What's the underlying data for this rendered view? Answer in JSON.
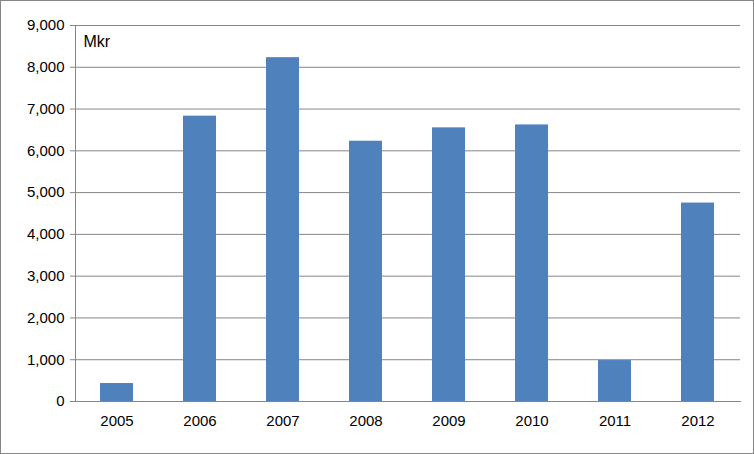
{
  "chart_data": {
    "type": "bar",
    "y_label": "Mkr",
    "categories": [
      "2005",
      "2006",
      "2007",
      "2008",
      "2009",
      "2010",
      "2011",
      "2012"
    ],
    "values": [
      430,
      6830,
      8230,
      6230,
      6550,
      6620,
      980,
      4750
    ],
    "color": "#4f81bd",
    "ylim": [
      0,
      9000
    ],
    "yticks": [
      0,
      1000,
      2000,
      3000,
      4000,
      5000,
      6000,
      7000,
      8000,
      9000
    ],
    "grid": true
  }
}
